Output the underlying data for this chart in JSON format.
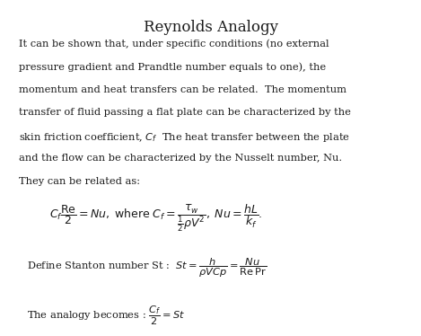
{
  "title": "Reynolds Analogy",
  "background_color": "#ffffff",
  "text_color": "#1a1a1a",
  "title_fontsize": 12,
  "body_fontsize": 8.2,
  "eq_fontsize": 9.0,
  "paragraph_lines": [
    "It can be shown that, under specific conditions (no external",
    "pressure gradient and Prandtle number equals to one), the",
    "momentum and heat transfers can be related.  The momentum",
    "transfer of fluid passing a flat plate can be characterized by the",
    "skin friction coefficient, $C_f$  The heat transfer between the plate",
    "and the flow can be characterized by the Nusselt number, Nu.",
    "They can be related as:"
  ],
  "eq1": "$C_f \\dfrac{\\mathrm{Re}}{2} = Nu, \\; \\mathrm{where} \\; C_f = \\dfrac{\\tau_w}{\\frac{1}{2}\\rho V^2}, \\; Nu = \\dfrac{hL}{k_f}.$",
  "eq2_text": "Define Stanton number St :  ",
  "eq2_math": "$St = \\dfrac{h}{\\rho VCp} = \\dfrac{Nu}{\\mathrm{Re}\\,\\mathrm{Pr}}$",
  "eq3_text": "The analogy becomes : ",
  "eq3_math": "$\\dfrac{C_f}{2} = St$"
}
